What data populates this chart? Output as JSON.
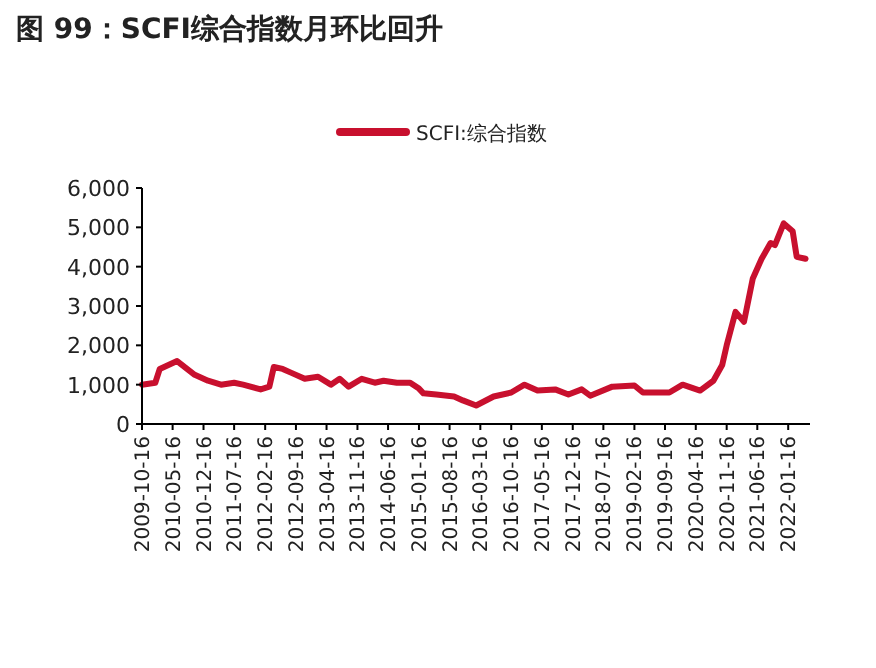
{
  "chart_data": {
    "type": "line",
    "title": "图 99：SCFI综合指数月环比回升",
    "legend": "top",
    "x": [
      "2009-10-16",
      "2010-01-16",
      "2010-02-16",
      "2010-06-16",
      "2010-10-16",
      "2011-01-16",
      "2011-04-16",
      "2011-07-16",
      "2011-09-16",
      "2012-01-16",
      "2012-03-16",
      "2012-04-16",
      "2012-06-16",
      "2012-08-16",
      "2012-11-16",
      "2013-02-16",
      "2013-05-16",
      "2013-07-16",
      "2013-09-16",
      "2013-12-16",
      "2014-03-16",
      "2014-05-16",
      "2014-08-16",
      "2014-11-16",
      "2015-01-16",
      "2015-02-16",
      "2015-05-16",
      "2015-09-16",
      "2015-11-16",
      "2016-02-16",
      "2016-06-16",
      "2016-10-16",
      "2017-01-16",
      "2017-04-16",
      "2017-08-16",
      "2017-11-16",
      "2018-02-16",
      "2018-04-16",
      "2018-09-16",
      "2019-02-16",
      "2019-04-16",
      "2019-10-16",
      "2020-01-16",
      "2020-05-16",
      "2020-08-16",
      "2020-10-16",
      "2020-11-16",
      "2021-01-16",
      "2021-03-16",
      "2021-05-16",
      "2021-07-16",
      "2021-09-16",
      "2021-10-16",
      "2021-12-16",
      "2022-02-16",
      "2022-03-16",
      "2022-05-16"
    ],
    "series": [
      {
        "name": "SCFI:综合指数",
        "color": "#c8102e",
        "values": [
          1000,
          1050,
          1400,
          1600,
          1250,
          1100,
          1000,
          1050,
          1000,
          880,
          950,
          1450,
          1400,
          1300,
          1150,
          1200,
          1000,
          1150,
          950,
          1150,
          1050,
          1100,
          1050,
          1050,
          900,
          780,
          750,
          700,
          600,
          470,
          700,
          800,
          1000,
          850,
          880,
          750,
          880,
          720,
          950,
          980,
          800,
          800,
          1000,
          850,
          1100,
          1500,
          2000,
          2850,
          2600,
          3700,
          4200,
          4600,
          4550,
          5100,
          4900,
          4250,
          4200
        ]
      }
    ],
    "xlim": [
      "2009-10-16",
      "2022-06-16"
    ],
    "xticks": [
      "2009-10-16",
      "2010-05-16",
      "2010-12-16",
      "2011-07-16",
      "2012-02-16",
      "2012-09-16",
      "2013-04-16",
      "2013-11-16",
      "2014-06-16",
      "2015-01-16",
      "2015-08-16",
      "2016-03-16",
      "2016-10-16",
      "2017-05-16",
      "2017-12-16",
      "2018-07-16",
      "2019-02-16",
      "2019-09-16",
      "2020-04-16",
      "2020-11-16",
      "2021-06-16",
      "2022-01-16"
    ],
    "ylim": [
      0,
      6000
    ],
    "yticks": [
      {
        "value": 0,
        "label": "0"
      },
      {
        "value": 1000,
        "label": "1,000"
      },
      {
        "value": 2000,
        "label": "2,000"
      },
      {
        "value": 3000,
        "label": "3,000"
      },
      {
        "value": 4000,
        "label": "4,000"
      },
      {
        "value": 5000,
        "label": "5,000"
      },
      {
        "value": 6000,
        "label": "6,000"
      }
    ],
    "grid": false,
    "line_style": "solid",
    "marker": "none"
  }
}
